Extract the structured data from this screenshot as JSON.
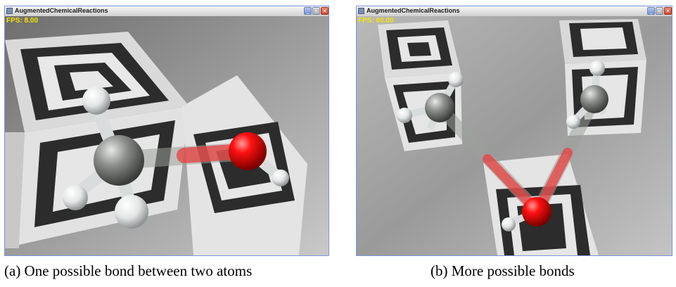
{
  "panels": [
    {
      "window_title": "AugmentedChemicalReactions",
      "fps_text": "FPS: 8.00",
      "caption": "(a) One possible bond between two atoms",
      "window_buttons": [
        "_",
        "□",
        "×"
      ]
    },
    {
      "window_title": "AugmentedChemicalReactions",
      "fps_text": "FPS: 60.00",
      "caption": "(b) More possible bonds",
      "window_buttons": [
        "_",
        "□",
        "×"
      ]
    }
  ],
  "colors": {
    "carbon": "#8a8d8a",
    "hydrogen": "#f2f2f2",
    "oxygen": "#e01010",
    "bond_possible": "#e84040",
    "fps_text": "#f5e400"
  }
}
